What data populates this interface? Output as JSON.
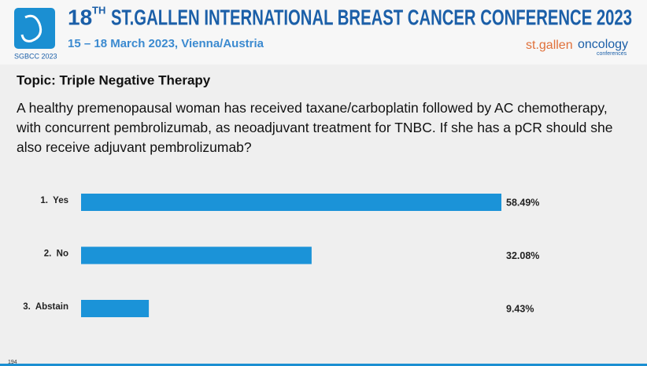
{
  "header": {
    "logo": "SGBCC 2023",
    "title_number": "18",
    "title_sup": "TH",
    "title_rest": "ST.GALLEN INTERNATIONAL BREAST CANCER CONFERENCE 2023",
    "dates": "15 – 18 March 2023, Vienna/Austria",
    "brand_a": "st.gallen",
    "brand_b": "oncology",
    "brand_c": "conferences"
  },
  "chart_data": {
    "type": "bar",
    "orientation": "horizontal",
    "title": "Topic: Triple Negative Therapy",
    "subtitle": "A healthy premenopausal woman has received taxane/carboplatin followed by AC chemotherapy, with concurrent pembrolizumab, as neoadjuvant treatment for TNBC. If she has a pCR should she also receive adjuvant pembrolizumab?",
    "categories": [
      "1.  Yes",
      "2.  No",
      "3.  Abstain"
    ],
    "values": [
      58.49,
      32.08,
      9.43
    ],
    "value_labels": [
      "58.49%",
      "32.08%",
      "9.43%"
    ],
    "color": "#1b93d8"
  },
  "footer": {
    "page": "194"
  }
}
